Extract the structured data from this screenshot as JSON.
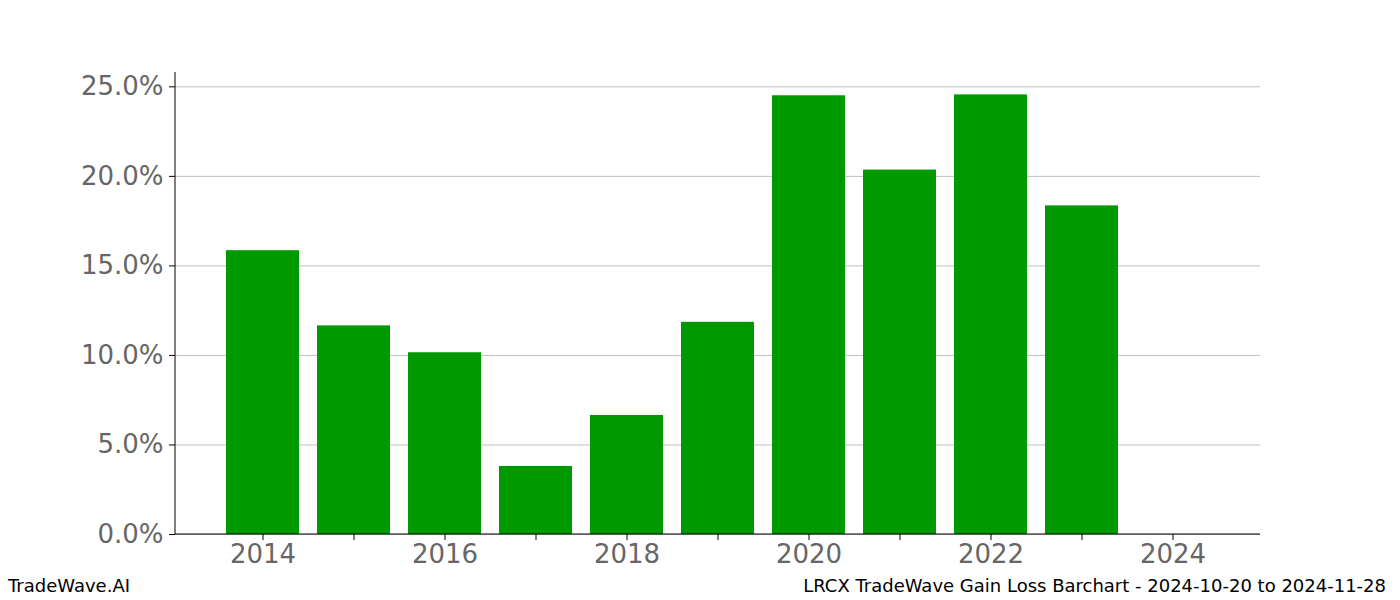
{
  "chart_data": {
    "type": "bar",
    "categories": [
      "2014",
      null,
      "2016",
      null,
      "2018",
      null,
      "2020",
      null,
      "2022",
      null,
      "2024"
    ],
    "values": [
      15.85,
      11.65,
      10.15,
      3.8,
      6.65,
      11.85,
      24.5,
      20.35,
      24.55,
      18.35,
      null
    ],
    "color": "#009900",
    "ylim": [
      0,
      25.8
    ],
    "yticks": [
      {
        "value": 0,
        "label": "0.0%"
      },
      {
        "value": 5,
        "label": "5.0%"
      },
      {
        "value": 10,
        "label": "10.0%"
      },
      {
        "value": 15,
        "label": "15.0%"
      },
      {
        "value": 20,
        "label": "20.0%"
      },
      {
        "value": 25,
        "label": "25.0%"
      }
    ],
    "grid": true,
    "annotations": [
      "TradeWave.AI",
      "LRCX TradeWave Gain Loss Barchart - 2024-10-20 to 2024-11-28"
    ]
  }
}
